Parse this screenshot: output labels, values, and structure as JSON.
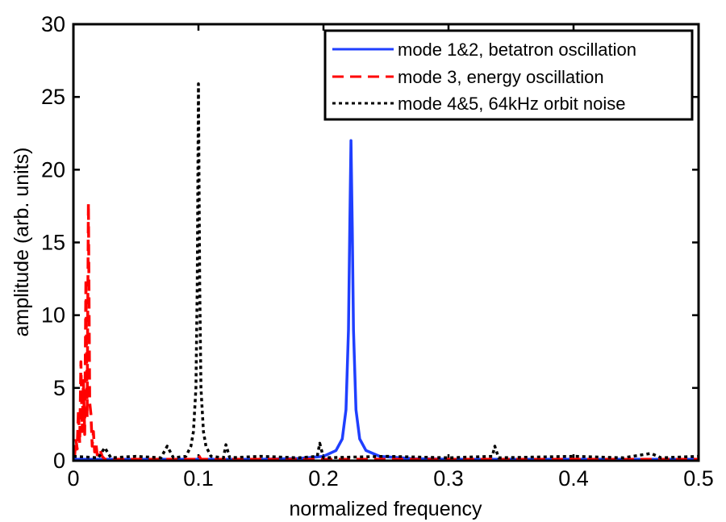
{
  "chart_data": {
    "type": "line",
    "title": "",
    "xlabel": "normalized frequency",
    "ylabel": "amplitude (arb. units)",
    "xlim": [
      0,
      0.5
    ],
    "ylim": [
      0,
      30
    ],
    "x_ticks": [
      "0",
      "0.1",
      "0.2",
      "0.3",
      "0.4",
      "0.5"
    ],
    "y_ticks": [
      "0",
      "5",
      "10",
      "15",
      "20",
      "25",
      "30"
    ],
    "grid": false,
    "legend_position": "top-right",
    "series": [
      {
        "name": "mode 1&2, betatron oscillation",
        "color": "#1f3fff",
        "style": "solid",
        "points": [
          [
            0.0,
            0.1
          ],
          [
            0.05,
            0.1
          ],
          [
            0.1,
            0.1
          ],
          [
            0.15,
            0.1
          ],
          [
            0.18,
            0.15
          ],
          [
            0.2,
            0.3
          ],
          [
            0.21,
            0.7
          ],
          [
            0.215,
            1.5
          ],
          [
            0.218,
            3.5
          ],
          [
            0.22,
            9
          ],
          [
            0.221,
            16
          ],
          [
            0.222,
            22
          ],
          [
            0.223,
            16
          ],
          [
            0.224,
            9
          ],
          [
            0.226,
            3.5
          ],
          [
            0.229,
            1.5
          ],
          [
            0.234,
            0.7
          ],
          [
            0.245,
            0.3
          ],
          [
            0.27,
            0.15
          ],
          [
            0.3,
            0.1
          ],
          [
            0.35,
            0.1
          ],
          [
            0.4,
            0.1
          ],
          [
            0.45,
            0.1
          ],
          [
            0.5,
            0.1
          ]
        ]
      },
      {
        "name": "mode 3, energy oscillation",
        "color": "#ff0000",
        "style": "dashed",
        "points": [
          [
            0.001,
            0.3
          ],
          [
            0.002,
            1.5
          ],
          [
            0.003,
            0.8
          ],
          [
            0.004,
            3.5
          ],
          [
            0.005,
            1.2
          ],
          [
            0.006,
            6.8
          ],
          [
            0.007,
            2.0
          ],
          [
            0.008,
            5.5
          ],
          [
            0.009,
            1.8
          ],
          [
            0.01,
            12.5
          ],
          [
            0.011,
            3.0
          ],
          [
            0.012,
            17.7
          ],
          [
            0.013,
            4.0
          ],
          [
            0.014,
            3.2
          ],
          [
            0.015,
            1.0
          ],
          [
            0.016,
            2.0
          ],
          [
            0.017,
            0.6
          ],
          [
            0.018,
            1.2
          ],
          [
            0.019,
            0.4
          ],
          [
            0.021,
            0.8
          ],
          [
            0.023,
            0.3
          ],
          [
            0.025,
            0.1
          ],
          [
            0.05,
            0.1
          ],
          [
            0.098,
            0.1
          ],
          [
            0.1,
            0.4
          ],
          [
            0.102,
            0.1
          ],
          [
            0.15,
            0.1
          ],
          [
            0.2,
            0.1
          ],
          [
            0.3,
            0.1
          ],
          [
            0.35,
            0.1
          ],
          [
            0.4,
            0.1
          ],
          [
            0.5,
            0.1
          ]
        ]
      },
      {
        "name": "mode 4&5, 64kHz orbit noise",
        "color": "#000000",
        "style": "dotted",
        "points": [
          [
            0.0,
            0.3
          ],
          [
            0.02,
            0.2
          ],
          [
            0.025,
            0.9
          ],
          [
            0.03,
            0.2
          ],
          [
            0.05,
            0.3
          ],
          [
            0.07,
            0.2
          ],
          [
            0.075,
            1.0
          ],
          [
            0.08,
            0.2
          ],
          [
            0.09,
            0.3
          ],
          [
            0.094,
            1.0
          ],
          [
            0.096,
            2.0
          ],
          [
            0.098,
            5.0
          ],
          [
            0.099,
            12.0
          ],
          [
            0.1,
            25.9
          ],
          [
            0.101,
            12.0
          ],
          [
            0.102,
            5.0
          ],
          [
            0.104,
            2.0
          ],
          [
            0.106,
            1.0
          ],
          [
            0.11,
            0.3
          ],
          [
            0.12,
            0.2
          ],
          [
            0.122,
            1.1
          ],
          [
            0.125,
            0.2
          ],
          [
            0.15,
            0.3
          ],
          [
            0.18,
            0.2
          ],
          [
            0.195,
            0.3
          ],
          [
            0.197,
            1.2
          ],
          [
            0.2,
            0.2
          ],
          [
            0.25,
            0.3
          ],
          [
            0.3,
            0.2
          ],
          [
            0.335,
            0.3
          ],
          [
            0.337,
            1.0
          ],
          [
            0.34,
            0.2
          ],
          [
            0.4,
            0.3
          ],
          [
            0.44,
            0.2
          ],
          [
            0.462,
            0.5
          ],
          [
            0.47,
            0.2
          ],
          [
            0.5,
            0.3
          ]
        ]
      }
    ]
  }
}
